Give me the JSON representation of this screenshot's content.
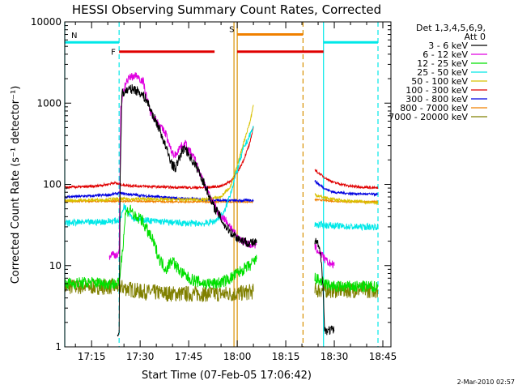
{
  "chart_data": {
    "type": "line",
    "title": "HESSI Observing Summary Count Rates, Corrected",
    "xlabel": "Start Time (07-Feb-05 17:06:42)",
    "ylabel": "Corrected Count Rate (s⁻¹ detector⁻¹)",
    "y_scale": "log",
    "ylim": [
      1,
      10000
    ],
    "xlim": [
      "17:06:42",
      "18:47:30"
    ],
    "x_ticks": [
      "17:15",
      "17:30",
      "17:45",
      "18:00",
      "18:15",
      "18:30",
      "18:45"
    ],
    "y_ticks": [
      "1",
      "10",
      "100",
      "1000",
      "10000"
    ],
    "grid": false,
    "legend": {
      "placement": "right",
      "header_lines": [
        "Det 1,3,4,5,6,9,",
        "Att 0"
      ],
      "entries": [
        {
          "name": "3 - 6 keV",
          "color": "#000000"
        },
        {
          "name": "6 - 12 keV",
          "color": "#e000e0"
        },
        {
          "name": "12 - 25 keV",
          "color": "#00e000"
        },
        {
          "name": "25 - 50 keV",
          "color": "#00e8e8"
        },
        {
          "name": "50 - 100 keV",
          "color": "#d8c000"
        },
        {
          "name": "100 - 300 keV",
          "color": "#e00000"
        },
        {
          "name": "300 - 800 keV",
          "color": "#0000e0"
        },
        {
          "name": "800 - 7000 keV",
          "color": "#f08000"
        },
        {
          "name": "7000 - 20000 keV",
          "color": "#808000"
        }
      ]
    },
    "flags": [
      {
        "label": "N",
        "color": "#00e8e8",
        "segments": [
          [
            "17:06:42",
            "17:23:30"
          ],
          [
            "18:26:40",
            "18:43:30"
          ]
        ],
        "level": 5600
      },
      {
        "label": "F",
        "color": "#e00000",
        "segments": [
          [
            "17:23:30",
            "17:53:00"
          ],
          [
            "18:00:00",
            "18:26:40"
          ]
        ],
        "level": 4300
      },
      {
        "label": "S",
        "color": "#f08000",
        "segments": [
          [
            "18:00:00",
            "18:20:20"
          ]
        ],
        "level": 7000
      }
    ],
    "vertical_markers": [
      {
        "time": "17:06:42",
        "color": "#00e8e8",
        "style": "solid"
      },
      {
        "time": "17:23:30",
        "color": "#00e8e8",
        "style": "dashed"
      },
      {
        "time": "17:59:00",
        "color": "#d89000",
        "style": "solid"
      },
      {
        "time": "18:00:00",
        "color": "#d89000",
        "style": "solid"
      },
      {
        "time": "18:20:20",
        "color": "#d89000",
        "style": "dashed"
      },
      {
        "time": "18:26:40",
        "color": "#00e8e8",
        "style": "solid"
      },
      {
        "time": "18:43:30",
        "color": "#00e8e8",
        "style": "dashed"
      }
    ],
    "series": [
      {
        "name": "3 - 6 keV",
        "color": "#000000",
        "noise": 0.12,
        "segments": [
          [
            [
              "17:23:00",
              1.3
            ],
            [
              "17:23:30",
              1.6
            ],
            [
              "17:23:50",
              120
            ],
            [
              "17:24:20",
              1300
            ],
            [
              "17:26",
              1450
            ],
            [
              "17:28",
              1500
            ],
            [
              "17:30",
              1350
            ],
            [
              "17:32",
              1100
            ],
            [
              "17:34",
              700
            ],
            [
              "17:36",
              480
            ],
            [
              "17:38",
              280
            ],
            [
              "17:40",
              170
            ],
            [
              "17:41",
              160
            ],
            [
              "17:43",
              260
            ],
            [
              "17:44",
              280
            ],
            [
              "17:46",
              200
            ],
            [
              "17:48",
              150
            ],
            [
              "17:49",
              120
            ],
            [
              "17:51",
              80
            ],
            [
              "17:52",
              60
            ],
            [
              "17:54",
              45
            ],
            [
              "17:56",
              32
            ],
            [
              "17:58",
              26
            ],
            [
              "18:00",
              22
            ],
            [
              "18:02",
              20
            ],
            [
              "18:04",
              19
            ],
            [
              "18:06",
              19
            ]
          ],
          [
            [
              "18:24:00",
              20
            ],
            [
              "18:25:00",
              18
            ],
            [
              "18:26:00",
              12
            ],
            [
              "18:26:30",
              6
            ],
            [
              "18:27:00",
              1.6
            ],
            [
              "18:30:00",
              1.6
            ]
          ]
        ]
      },
      {
        "name": "6 - 12 keV",
        "color": "#e000e0",
        "noise": 0.1,
        "segments": [
          [
            [
              "17:20:30",
              13
            ],
            [
              "17:21:30",
              14
            ],
            [
              "17:22:30",
              13.5
            ],
            [
              "17:23:30",
              14
            ],
            [
              "17:24:00",
              900
            ],
            [
              "17:25:30",
              1800
            ],
            [
              "17:27",
              2100
            ],
            [
              "17:29",
              2200
            ],
            [
              "17:31",
              1800
            ],
            [
              "17:33",
              800
            ],
            [
              "17:35",
              620
            ],
            [
              "17:37",
              470
            ],
            [
              "17:38",
              420
            ],
            [
              "17:39",
              300
            ],
            [
              "17:40",
              240
            ],
            [
              "17:41",
              230
            ],
            [
              "17:42",
              280
            ],
            [
              "17:44",
              320
            ],
            [
              "17:45",
              270
            ],
            [
              "17:47",
              200
            ],
            [
              "17:49",
              120
            ],
            [
              "17:51",
              80
            ],
            [
              "17:53",
              55
            ],
            [
              "17:54",
              45
            ],
            [
              "17:56",
              38
            ],
            [
              "17:58",
              30
            ],
            [
              "18:00",
              22
            ],
            [
              "18:02",
              20
            ],
            [
              "18:04",
              18
            ],
            [
              "18:06",
              18
            ]
          ],
          [
            [
              "18:24:00",
              17
            ],
            [
              "18:25:00",
              15
            ],
            [
              "18:26:00",
              14
            ],
            [
              "18:27:00",
              12
            ],
            [
              "18:28:00",
              11
            ],
            [
              "18:30:00",
              10
            ]
          ]
        ]
      },
      {
        "name": "12 - 25 keV",
        "color": "#00e000",
        "noise": 0.15,
        "segments": [
          [
            [
              "17:06:42",
              6
            ],
            [
              "17:15:00",
              6.2
            ],
            [
              "17:20:00",
              6
            ],
            [
              "17:23:30",
              6
            ],
            [
              "17:24:00",
              10
            ],
            [
              "17:24:30",
              15
            ],
            [
              "17:25:30",
              45
            ],
            [
              "17:27",
              50
            ],
            [
              "17:28",
              42
            ],
            [
              "17:29",
              36
            ],
            [
              "17:30",
              40
            ],
            [
              "17:32",
              28
            ],
            [
              "17:34",
              20
            ],
            [
              "17:36",
              12
            ],
            [
              "17:38",
              9
            ],
            [
              "17:40",
              12
            ],
            [
              "17:41",
              10
            ],
            [
              "17:43",
              8
            ],
            [
              "17:45",
              7
            ],
            [
              "17:47",
              6.5
            ],
            [
              "17:50",
              6
            ],
            [
              "17:53",
              6
            ],
            [
              "17:55",
              6.2
            ],
            [
              "17:58",
              7
            ],
            [
              "18:00",
              8
            ],
            [
              "18:02",
              9
            ],
            [
              "18:04",
              10
            ],
            [
              "18:06",
              12
            ]
          ],
          [
            [
              "18:24:00",
              7
            ],
            [
              "18:27:00",
              6
            ],
            [
              "18:30:00",
              5.5
            ],
            [
              "18:40:00",
              5.5
            ],
            [
              "18:43:30",
              5.5
            ]
          ]
        ]
      },
      {
        "name": "25 - 50 keV",
        "color": "#00e8e8",
        "noise": 0.08,
        "segments": [
          [
            [
              "17:06:42",
              33
            ],
            [
              "17:10:00",
              34
            ],
            [
              "17:15:00",
              34
            ],
            [
              "17:20:00",
              35
            ],
            [
              "17:23:30",
              36
            ],
            [
              "17:24:00",
              38
            ],
            [
              "17:25:00",
              55
            ],
            [
              "17:26",
              48
            ],
            [
              "17:28",
              38
            ],
            [
              "17:30",
              37
            ],
            [
              "17:35",
              35
            ],
            [
              "17:40",
              34
            ],
            [
              "17:45",
              33
            ],
            [
              "17:50",
              33
            ],
            [
              "17:53",
              35
            ],
            [
              "17:56",
              45
            ],
            [
              "17:58",
              80
            ],
            [
              "18:00",
              150
            ],
            [
              "18:02",
              280
            ],
            [
              "18:05",
              500
            ]
          ],
          [
            [
              "18:24:00",
              32
            ],
            [
              "18:30:00",
              31
            ],
            [
              "18:35:00",
              30
            ],
            [
              "18:40:00",
              30
            ],
            [
              "18:43:30",
              30
            ]
          ]
        ]
      },
      {
        "name": "50 - 100 keV",
        "color": "#d8c000",
        "noise": 0.04,
        "segments": [
          [
            [
              "17:06:42",
              63
            ],
            [
              "17:15:00",
              64
            ],
            [
              "17:20:00",
              65
            ],
            [
              "17:23:30",
              66
            ],
            [
              "17:30:00",
              66
            ],
            [
              "17:40:00",
              65
            ],
            [
              "17:50:00",
              65
            ],
            [
              "17:55:00",
              70
            ],
            [
              "17:58:00",
              95
            ],
            [
              "18:00:00",
              170
            ],
            [
              "18:02:00",
              330
            ],
            [
              "18:04:00",
              600
            ],
            [
              "18:05:00",
              950
            ]
          ],
          [
            [
              "18:24:00",
              75
            ],
            [
              "18:26:00",
              70
            ],
            [
              "18:30:00",
              65
            ],
            [
              "18:35:00",
              62
            ],
            [
              "18:40:00",
              61
            ],
            [
              "18:43:30",
              60
            ]
          ]
        ]
      },
      {
        "name": "100 - 300 keV",
        "color": "#e00000",
        "noise": 0.03,
        "segments": [
          [
            [
              "17:06:42",
              92
            ],
            [
              "17:15:00",
              94
            ],
            [
              "17:20:00",
              100
            ],
            [
              "17:22:00",
              105
            ],
            [
              "17:23:30",
              100
            ],
            [
              "17:26:00",
              97
            ],
            [
              "17:30:00",
              95
            ],
            [
              "17:40:00",
              92
            ],
            [
              "17:50:00",
              91
            ],
            [
              "17:55:00",
              95
            ],
            [
              "17:58:00",
              110
            ],
            [
              "18:00:00",
              140
            ],
            [
              "18:02:00",
              200
            ],
            [
              "18:04:00",
              330
            ],
            [
              "18:05:00",
              520
            ]
          ],
          [
            [
              "18:24:00",
              150
            ],
            [
              "18:26:00",
              130
            ],
            [
              "18:28:00",
              115
            ],
            [
              "18:30:00",
              105
            ],
            [
              "18:35:00",
              95
            ],
            [
              "18:40:00",
              92
            ],
            [
              "18:43:30",
              90
            ]
          ]
        ]
      },
      {
        "name": "300 - 800 keV",
        "color": "#0000e0",
        "noise": 0.03,
        "segments": [
          [
            [
              "17:06:42",
              70
            ],
            [
              "17:15:00",
              72
            ],
            [
              "17:20:00",
              74
            ],
            [
              "17:23:30",
              78
            ],
            [
              "17:30:00",
              73
            ],
            [
              "17:40:00",
              68
            ],
            [
              "17:50:00",
              65
            ],
            [
              "17:55:00",
              64
            ],
            [
              "18:00:00",
              63
            ],
            [
              "18:05:00",
              64
            ]
          ],
          [
            [
              "18:24:00",
              110
            ],
            [
              "18:26:00",
              95
            ],
            [
              "18:28:00",
              85
            ],
            [
              "18:30:00",
              80
            ],
            [
              "18:35:00",
              77
            ],
            [
              "18:40:00",
              76
            ],
            [
              "18:43:30",
              75
            ]
          ]
        ]
      },
      {
        "name": "800 - 7000 keV",
        "color": "#f08000",
        "noise": 0.02,
        "segments": [
          [
            [
              "17:06:42",
              62
            ],
            [
              "17:15:00",
              62
            ],
            [
              "17:23:30",
              62
            ],
            [
              "17:30:00",
              62
            ],
            [
              "17:40:00",
              61
            ],
            [
              "17:50:00",
              61
            ],
            [
              "18:00:00",
              61
            ],
            [
              "18:05:00",
              61
            ]
          ],
          [
            [
              "18:24:00",
              65
            ],
            [
              "18:30:00",
              62
            ],
            [
              "18:35:00",
              61
            ],
            [
              "18:43:30",
              61
            ]
          ]
        ]
      },
      {
        "name": "7000 - 20000 keV",
        "color": "#808000",
        "noise": 0.2,
        "segments": [
          [
            [
              "17:06:42",
              5.5
            ],
            [
              "17:15:00",
              5.5
            ],
            [
              "17:20:00",
              5.5
            ],
            [
              "17:23:30",
              5.5
            ],
            [
              "17:30:00",
              4.8
            ],
            [
              "17:40:00",
              4.5
            ],
            [
              "17:50:00",
              4.5
            ],
            [
              "18:00:00",
              4.5
            ],
            [
              "18:05:00",
              4.8
            ]
          ],
          [
            [
              "18:24:00",
              5
            ],
            [
              "18:30:00",
              5
            ],
            [
              "18:40:00",
              5
            ],
            [
              "18:43:30",
              5
            ]
          ]
        ]
      }
    ]
  },
  "footer": {
    "date_stamp": "2-Mar-2010 02:57"
  }
}
